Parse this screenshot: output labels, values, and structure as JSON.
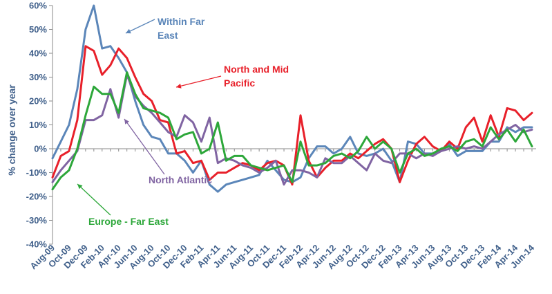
{
  "chart_data": {
    "type": "line",
    "ylabel": "% change over year",
    "ylim": [
      -40,
      60
    ],
    "yticks": [
      -40,
      -30,
      -20,
      -10,
      0,
      10,
      20,
      30,
      40,
      50,
      60
    ],
    "ytick_format": "percent",
    "grid": false,
    "x_tick_labels": [
      "Aug-09",
      "Oct-09",
      "Dec-09",
      "Feb-10",
      "Apr-10",
      "Jun-10",
      "Aug-10",
      "Oct-10",
      "Dec-10",
      "Feb-11",
      "Apr-11",
      "Jun-11",
      "Aug-11",
      "Oct-11",
      "Dec-11",
      "Feb-12",
      "Apr-12",
      "Jun-12",
      "Aug-12",
      "Oct-12",
      "Dec-12",
      "Feb-13",
      "Apr-13",
      "Jun-13",
      "Aug-13",
      "Oct-13",
      "Dec-13",
      "Feb-14",
      "Apr-14",
      "Jun-14"
    ],
    "x_months": [
      "Aug-09",
      "Sep-09",
      "Oct-09",
      "Nov-09",
      "Dec-09",
      "Jan-10",
      "Feb-10",
      "Mar-10",
      "Apr-10",
      "May-10",
      "Jun-10",
      "Jul-10",
      "Aug-10",
      "Sep-10",
      "Oct-10",
      "Nov-10",
      "Dec-10",
      "Jan-11",
      "Feb-11",
      "Mar-11",
      "Apr-11",
      "May-11",
      "Jun-11",
      "Jul-11",
      "Aug-11",
      "Sep-11",
      "Oct-11",
      "Nov-11",
      "Dec-11",
      "Jan-12",
      "Feb-12",
      "Mar-12",
      "Apr-12",
      "May-12",
      "Jun-12",
      "Jul-12",
      "Aug-12",
      "Sep-12",
      "Oct-12",
      "Nov-12",
      "Dec-12",
      "Jan-13",
      "Feb-13",
      "Mar-13",
      "Apr-13",
      "May-13",
      "Jun-13",
      "Jul-13",
      "Aug-13",
      "Sep-13",
      "Oct-13",
      "Nov-13",
      "Dec-13",
      "Jan-14",
      "Feb-14",
      "Mar-14",
      "Apr-14",
      "May-14",
      "Jun-14"
    ],
    "series": [
      {
        "name": "Within Far East",
        "color": "#5b86b9",
        "values": [
          -4,
          3,
          10,
          25,
          50,
          60,
          42,
          43,
          38,
          32,
          20,
          10,
          5,
          4,
          -2,
          -2,
          -5,
          -10,
          -5,
          -15,
          -18,
          -15,
          -14,
          -13,
          -12,
          -11,
          -5,
          -9,
          -13,
          -14,
          -12,
          -4,
          1,
          1,
          -2,
          0,
          5,
          -2,
          -3,
          -2,
          0,
          -5,
          -14,
          3,
          2,
          -2,
          -2,
          -1,
          2,
          -3,
          -1,
          -1,
          -1,
          3,
          3,
          9,
          7,
          9,
          9
        ],
        "labels": []
      },
      {
        "name": "North and Mid Pacific",
        "color": "#e8202a",
        "values": [
          -12,
          -3,
          -1,
          12,
          43,
          41,
          31,
          35,
          42,
          38,
          30,
          23,
          20,
          12,
          11,
          -2,
          -1,
          -6,
          -5,
          -13,
          -10,
          -10,
          -8,
          -6,
          -7,
          -9,
          -6,
          -5,
          -7,
          -15,
          14,
          -5,
          -12,
          -8,
          -5,
          -5,
          -2,
          -4,
          -1,
          2,
          4,
          0,
          -14,
          -5,
          2,
          5,
          1,
          -1,
          3,
          0,
          9,
          13,
          3,
          14,
          5,
          17,
          16,
          12,
          15
        ],
        "labels": []
      },
      {
        "name": "North Atlantic",
        "color": "#8064a2",
        "values": [
          -14,
          -9,
          -5,
          -1,
          12,
          12,
          14,
          25,
          13,
          31,
          22,
          18,
          15,
          11,
          7,
          5,
          14,
          11,
          3,
          13,
          -6,
          -4,
          -5,
          -7,
          -8,
          -10,
          -8,
          -5,
          -15,
          -9,
          -9,
          -10,
          -12,
          -4,
          -6,
          -6,
          -3,
          -6,
          -9,
          -2,
          -5,
          -6,
          -2,
          -2,
          -4,
          -2,
          -3,
          -1,
          0,
          1,
          0,
          1,
          0,
          3,
          6,
          8,
          10,
          7,
          8
        ],
        "labels": []
      },
      {
        "name": "Europe - Far East",
        "color": "#2da73a",
        "values": [
          -17,
          -12,
          -9,
          0,
          14,
          26,
          23,
          23,
          15,
          32,
          23,
          17,
          16,
          15,
          13,
          4,
          6,
          7,
          -2,
          0,
          11,
          -5,
          -3,
          -3,
          -7,
          -8,
          -9,
          -8,
          -7,
          -14,
          3,
          -7,
          -7,
          -6,
          -3,
          -2,
          -4,
          -1,
          5,
          0,
          3,
          0,
          -10,
          -2,
          0,
          -3,
          -2,
          0,
          1,
          -1,
          3,
          4,
          1,
          9,
          4,
          8,
          3,
          8,
          1
        ],
        "labels": []
      }
    ],
    "annotations": [
      {
        "text": [
          "Within Far",
          "East"
        ],
        "color": "#5b86b9"
      },
      {
        "text": [
          "North and Mid",
          "Pacific"
        ],
        "color": "#e8202a"
      },
      {
        "text": [
          "North Atlantic"
        ],
        "color": "#8064a2"
      },
      {
        "text": [
          "Europe - Far East"
        ],
        "color": "#2da73a"
      }
    ]
  }
}
